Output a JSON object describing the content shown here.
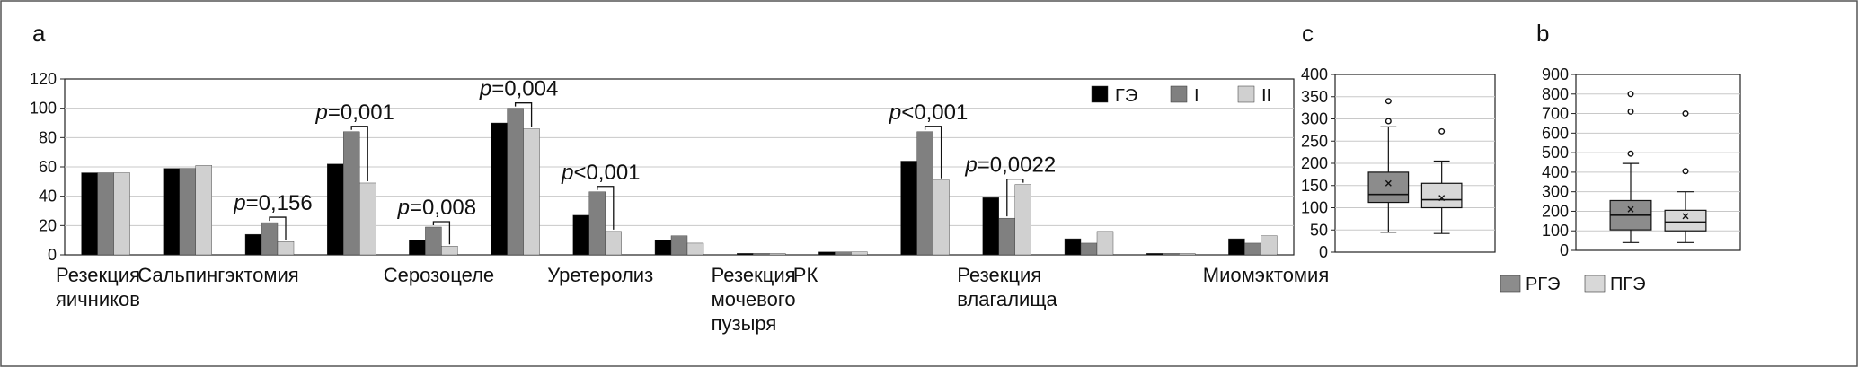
{
  "figure": {
    "panels": {
      "a": {
        "letter": "a"
      },
      "c": {
        "letter": "c"
      },
      "b": {
        "letter": "b"
      }
    }
  },
  "chart_data": [
    {
      "type": "bar",
      "panel": "a",
      "ylim": [
        0,
        120
      ],
      "yticks": [
        "0",
        "20",
        "40",
        "60",
        "80",
        "100",
        "120"
      ],
      "grid": true,
      "legend_position": "top-right",
      "categories": [
        "Резекция яичников",
        "Сальпингэктомия",
        "Серозоцеле",
        "Уретеролиз",
        "Резекция мочевого пузыря",
        "РК",
        "Резекция влагалища",
        "Миомэктомия"
      ],
      "category_label_lines": [
        [
          "Резекция",
          "яичников"
        ],
        [
          "Сальпингэктомия"
        ],
        [
          "Серозоцеле"
        ],
        [
          "Уретеролиз"
        ],
        [
          "Резекция",
          "мочевого",
          "пузыря"
        ],
        [
          "РК"
        ],
        [
          "Резекция",
          "влагалища"
        ],
        [
          "Миомэктомия"
        ]
      ],
      "bar_groups": [
        {
          "label_index": 0,
          "values": [
            56,
            56,
            56
          ]
        },
        {
          "label_index": 1,
          "values": [
            59,
            59,
            61
          ]
        },
        {
          "label_index": -1,
          "values": [
            14,
            22,
            9
          ],
          "p_value": "p=0,156"
        },
        {
          "label_index": -1,
          "values": [
            62,
            84,
            49
          ],
          "p_value": "p=0,001"
        },
        {
          "label_index": 2,
          "values": [
            10,
            19,
            6
          ],
          "p_value": "p=0,008"
        },
        {
          "label_index": -1,
          "values": [
            90,
            100,
            86
          ],
          "p_value": "p=0,004"
        },
        {
          "label_index": 3,
          "values": [
            27,
            43,
            16
          ],
          "p_value": "p<0,001"
        },
        {
          "label_index": -1,
          "values": [
            10,
            13,
            8
          ]
        },
        {
          "label_index": 4,
          "values": [
            1,
            1,
            1
          ]
        },
        {
          "label_index": 5,
          "values": [
            2,
            2,
            2
          ]
        },
        {
          "label_index": -1,
          "values": [
            64,
            84,
            51
          ],
          "p_value": "p<0,001"
        },
        {
          "label_index": 6,
          "values": [
            39,
            25,
            48
          ],
          "p_value": "p=0,0022"
        },
        {
          "label_index": -1,
          "values": [
            11,
            8,
            16
          ]
        },
        {
          "label_index": -1,
          "values": [
            1,
            1,
            1
          ]
        },
        {
          "label_index": 7,
          "values": [
            11,
            8,
            13
          ]
        }
      ],
      "series": [
        {
          "name": "ГЭ",
          "color": "#000000"
        },
        {
          "name": "I",
          "color": "#808080"
        },
        {
          "name": "II",
          "color": "#d0d0d0"
        }
      ]
    },
    {
      "type": "box",
      "panel": "c",
      "ylim": [
        0,
        400
      ],
      "yticks": [
        "0",
        "50",
        "100",
        "150",
        "200",
        "250",
        "300",
        "350",
        "400"
      ],
      "grid": true,
      "series": [
        {
          "name": "РГЭ",
          "color": "#8c8c8c",
          "min": 45,
          "q1": 112,
          "median": 130,
          "q3": 180,
          "max": 282,
          "mean": 155,
          "outliers": [
            295,
            340
          ]
        },
        {
          "name": "ПГЭ",
          "color": "#d8d8d8",
          "min": 42,
          "q1": 100,
          "median": 118,
          "q3": 155,
          "max": 205,
          "mean": 122,
          "outliers": [
            272
          ]
        }
      ]
    },
    {
      "type": "box",
      "panel": "b",
      "ylim": [
        0,
        900
      ],
      "yticks": [
        "0",
        "100",
        "200",
        "300",
        "400",
        "500",
        "600",
        "700",
        "800",
        "900"
      ],
      "grid": true,
      "series": [
        {
          "name": "РГЭ",
          "color": "#8c8c8c",
          "min": 40,
          "q1": 105,
          "median": 180,
          "q3": 255,
          "max": 445,
          "mean": 210,
          "outliers": [
            495,
            710,
            800
          ]
        },
        {
          "name": "ПГЭ",
          "color": "#d8d8d8",
          "min": 40,
          "q1": 100,
          "median": 145,
          "q3": 205,
          "max": 300,
          "mean": 175,
          "outliers": [
            405,
            700
          ]
        }
      ]
    }
  ],
  "boxplot_legend": [
    {
      "name": "РГЭ",
      "color": "#8c8c8c"
    },
    {
      "name": "ПГЭ",
      "color": "#d8d8d8"
    }
  ]
}
